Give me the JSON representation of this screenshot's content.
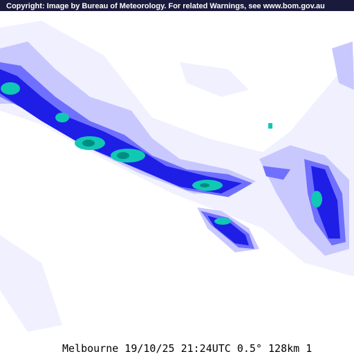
{
  "header": {
    "copyright": "Copyright: Image by Bureau of Meteorology. For related Warnings, see www.bom.gov.au"
  },
  "footer": {
    "caption": "Melbourne 19/10/25 21:24UTC 0.5° 128km 1"
  }
}
